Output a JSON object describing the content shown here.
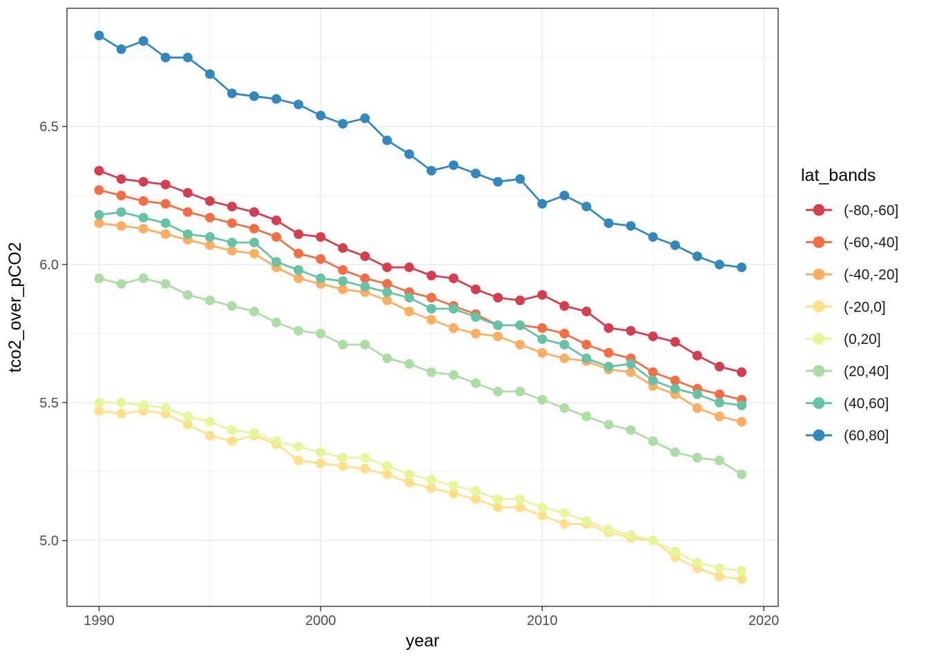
{
  "chart_data": {
    "type": "line",
    "title": "",
    "xlabel": "year",
    "ylabel": "tco2_over_pCO2",
    "legend_title": "lat_bands",
    "legend_position": "right",
    "grid": true,
    "xlim": [
      1988.55,
      2020.65
    ],
    "ylim": [
      4.7615,
      6.9285
    ],
    "x_tick_values": [
      1990,
      2000,
      2010,
      2020
    ],
    "x_tick_labels": [
      "1990",
      "2000",
      "2010",
      "2020"
    ],
    "x_minor_ticks": [
      1995,
      2005,
      2015
    ],
    "y_tick_values": [
      5.0,
      5.5,
      6.0,
      6.5
    ],
    "y_tick_labels": [
      "5.0",
      "5.5",
      "6.0",
      "6.5"
    ],
    "y_minor_ticks": [
      5.25,
      5.75,
      6.25,
      6.75
    ],
    "x": [
      1990,
      1991,
      1992,
      1993,
      1994,
      1995,
      1996,
      1997,
      1998,
      1999,
      2000,
      2001,
      2002,
      2003,
      2004,
      2005,
      2006,
      2007,
      2008,
      2009,
      2010,
      2011,
      2012,
      2013,
      2014,
      2015,
      2016,
      2017,
      2018,
      2019
    ],
    "series": [
      {
        "name": "(-80,-60]",
        "color": "#d53e4f",
        "values": [
          6.34,
          6.31,
          6.3,
          6.29,
          6.26,
          6.23,
          6.21,
          6.19,
          6.16,
          6.11,
          6.1,
          6.06,
          6.03,
          5.99,
          5.99,
          5.96,
          5.95,
          5.91,
          5.88,
          5.87,
          5.89,
          5.85,
          5.83,
          5.77,
          5.76,
          5.74,
          5.72,
          5.67,
          5.63,
          5.61
        ]
      },
      {
        "name": "(-60,-40]",
        "color": "#f46d43",
        "values": [
          6.27,
          6.25,
          6.23,
          6.22,
          6.19,
          6.17,
          6.15,
          6.13,
          6.1,
          6.04,
          6.02,
          5.98,
          5.95,
          5.93,
          5.9,
          5.88,
          5.85,
          5.82,
          5.78,
          5.78,
          5.77,
          5.75,
          5.71,
          5.68,
          5.66,
          5.61,
          5.58,
          5.55,
          5.53,
          5.51
        ]
      },
      {
        "name": "(-40,-20]",
        "color": "#fdae61",
        "values": [
          6.15,
          6.14,
          6.13,
          6.11,
          6.09,
          6.07,
          6.05,
          6.04,
          5.99,
          5.95,
          5.93,
          5.91,
          5.9,
          5.87,
          5.83,
          5.8,
          5.77,
          5.75,
          5.74,
          5.71,
          5.68,
          5.66,
          5.65,
          5.62,
          5.61,
          5.56,
          5.53,
          5.48,
          5.45,
          5.43
        ]
      },
      {
        "name": "(-20,0]",
        "color": "#fee08b",
        "values": [
          5.47,
          5.46,
          5.47,
          5.46,
          5.42,
          5.38,
          5.36,
          5.38,
          5.35,
          5.29,
          5.28,
          5.27,
          5.26,
          5.24,
          5.21,
          5.19,
          5.17,
          5.15,
          5.12,
          5.12,
          5.09,
          5.06,
          5.06,
          5.03,
          5.01,
          5.0,
          4.94,
          4.9,
          4.87,
          4.86
        ]
      },
      {
        "name": "(0,20]",
        "color": "#e6f598",
        "values": [
          5.5,
          5.5,
          5.49,
          5.48,
          5.45,
          5.43,
          5.4,
          5.39,
          5.36,
          5.34,
          5.32,
          5.3,
          5.3,
          5.27,
          5.24,
          5.22,
          5.2,
          5.18,
          5.15,
          5.15,
          5.12,
          5.1,
          5.07,
          5.04,
          5.02,
          5.0,
          4.96,
          4.92,
          4.9,
          4.89
        ]
      },
      {
        "name": "(20,40]",
        "color": "#abdda4",
        "values": [
          5.95,
          5.93,
          5.95,
          5.93,
          5.89,
          5.87,
          5.85,
          5.83,
          5.79,
          5.76,
          5.75,
          5.71,
          5.71,
          5.66,
          5.64,
          5.61,
          5.6,
          5.57,
          5.54,
          5.54,
          5.51,
          5.48,
          5.45,
          5.42,
          5.4,
          5.36,
          5.32,
          5.3,
          5.29,
          5.24
        ]
      },
      {
        "name": "(40,60]",
        "color": "#66c2a5",
        "values": [
          6.18,
          6.19,
          6.17,
          6.15,
          6.11,
          6.1,
          6.08,
          6.08,
          6.01,
          5.98,
          5.95,
          5.94,
          5.92,
          5.9,
          5.88,
          5.84,
          5.84,
          5.81,
          5.78,
          5.78,
          5.73,
          5.71,
          5.66,
          5.63,
          5.64,
          5.58,
          5.55,
          5.53,
          5.5,
          5.49
        ]
      },
      {
        "name": "(60,80]",
        "color": "#3288bd",
        "values": [
          6.83,
          6.78,
          6.81,
          6.75,
          6.75,
          6.69,
          6.62,
          6.61,
          6.6,
          6.58,
          6.54,
          6.51,
          6.53,
          6.45,
          6.4,
          6.34,
          6.36,
          6.33,
          6.3,
          6.31,
          6.22,
          6.25,
          6.21,
          6.15,
          6.14,
          6.1,
          6.07,
          6.03,
          6.0,
          5.99
        ]
      }
    ],
    "colors": {
      "background": "#ffffff",
      "panel_background": "#ffffff",
      "grid": "#ebebeb",
      "panel_border": "#333333",
      "tick": "#333333",
      "tick_label": "#4d4d4d",
      "axis_title": "#000000"
    }
  }
}
